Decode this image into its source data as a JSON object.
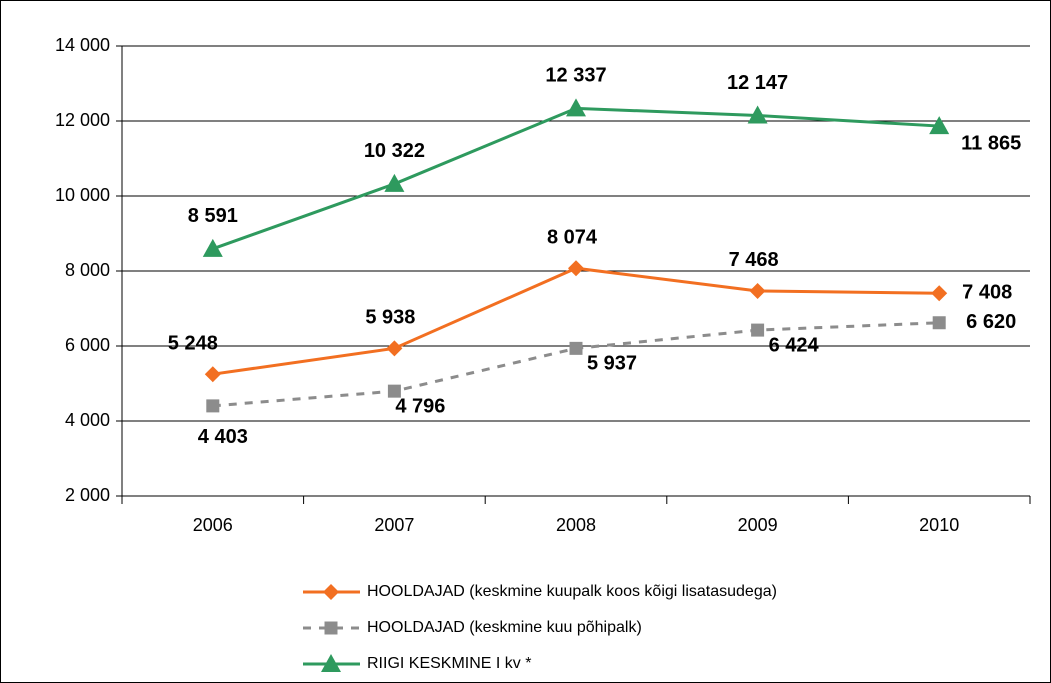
{
  "chart_data": {
    "type": "line",
    "categories": [
      "2006",
      "2007",
      "2008",
      "2009",
      "2010"
    ],
    "series": [
      {
        "name": "HOOLDAJAD (keskmine kuupalk koos kõigi lisatasudega)",
        "color": "#f26f21",
        "marker": "diamond",
        "linestyle": "solid",
        "values": [
          5248,
          5938,
          8074,
          7468,
          7408
        ],
        "value_labels": [
          "5 248",
          "5 938",
          "8 074",
          "7 468",
          "7 408"
        ]
      },
      {
        "name": "HOOLDAJAD (keskmine kuu põhipalk)",
        "color": "#8c8c8c",
        "marker": "square",
        "linestyle": "dashed",
        "values": [
          4403,
          4796,
          5937,
          6424,
          6620
        ],
        "value_labels": [
          "4 403",
          "4 796",
          "5 937",
          "6 424",
          "6 620"
        ]
      },
      {
        "name": "RIIGI KESKMINE I kv *",
        "color": "#2e9a5e",
        "marker": "triangle",
        "linestyle": "solid",
        "values": [
          8591,
          10322,
          12337,
          12147,
          11865
        ],
        "value_labels": [
          "8 591",
          "10 322",
          "12 337",
          "12 147",
          "11 865"
        ]
      }
    ],
    "ylim": [
      2000,
      14000
    ],
    "yticks": [
      {
        "value": 2000,
        "label": "2 000"
      },
      {
        "value": 4000,
        "label": "4 000"
      },
      {
        "value": 6000,
        "label": "6 000"
      },
      {
        "value": 8000,
        "label": "8 000"
      },
      {
        "value": 10000,
        "label": "10 000"
      },
      {
        "value": 12000,
        "label": "12 000"
      },
      {
        "value": 14000,
        "label": "14 000"
      }
    ],
    "grid": true,
    "legend": "bottom"
  }
}
